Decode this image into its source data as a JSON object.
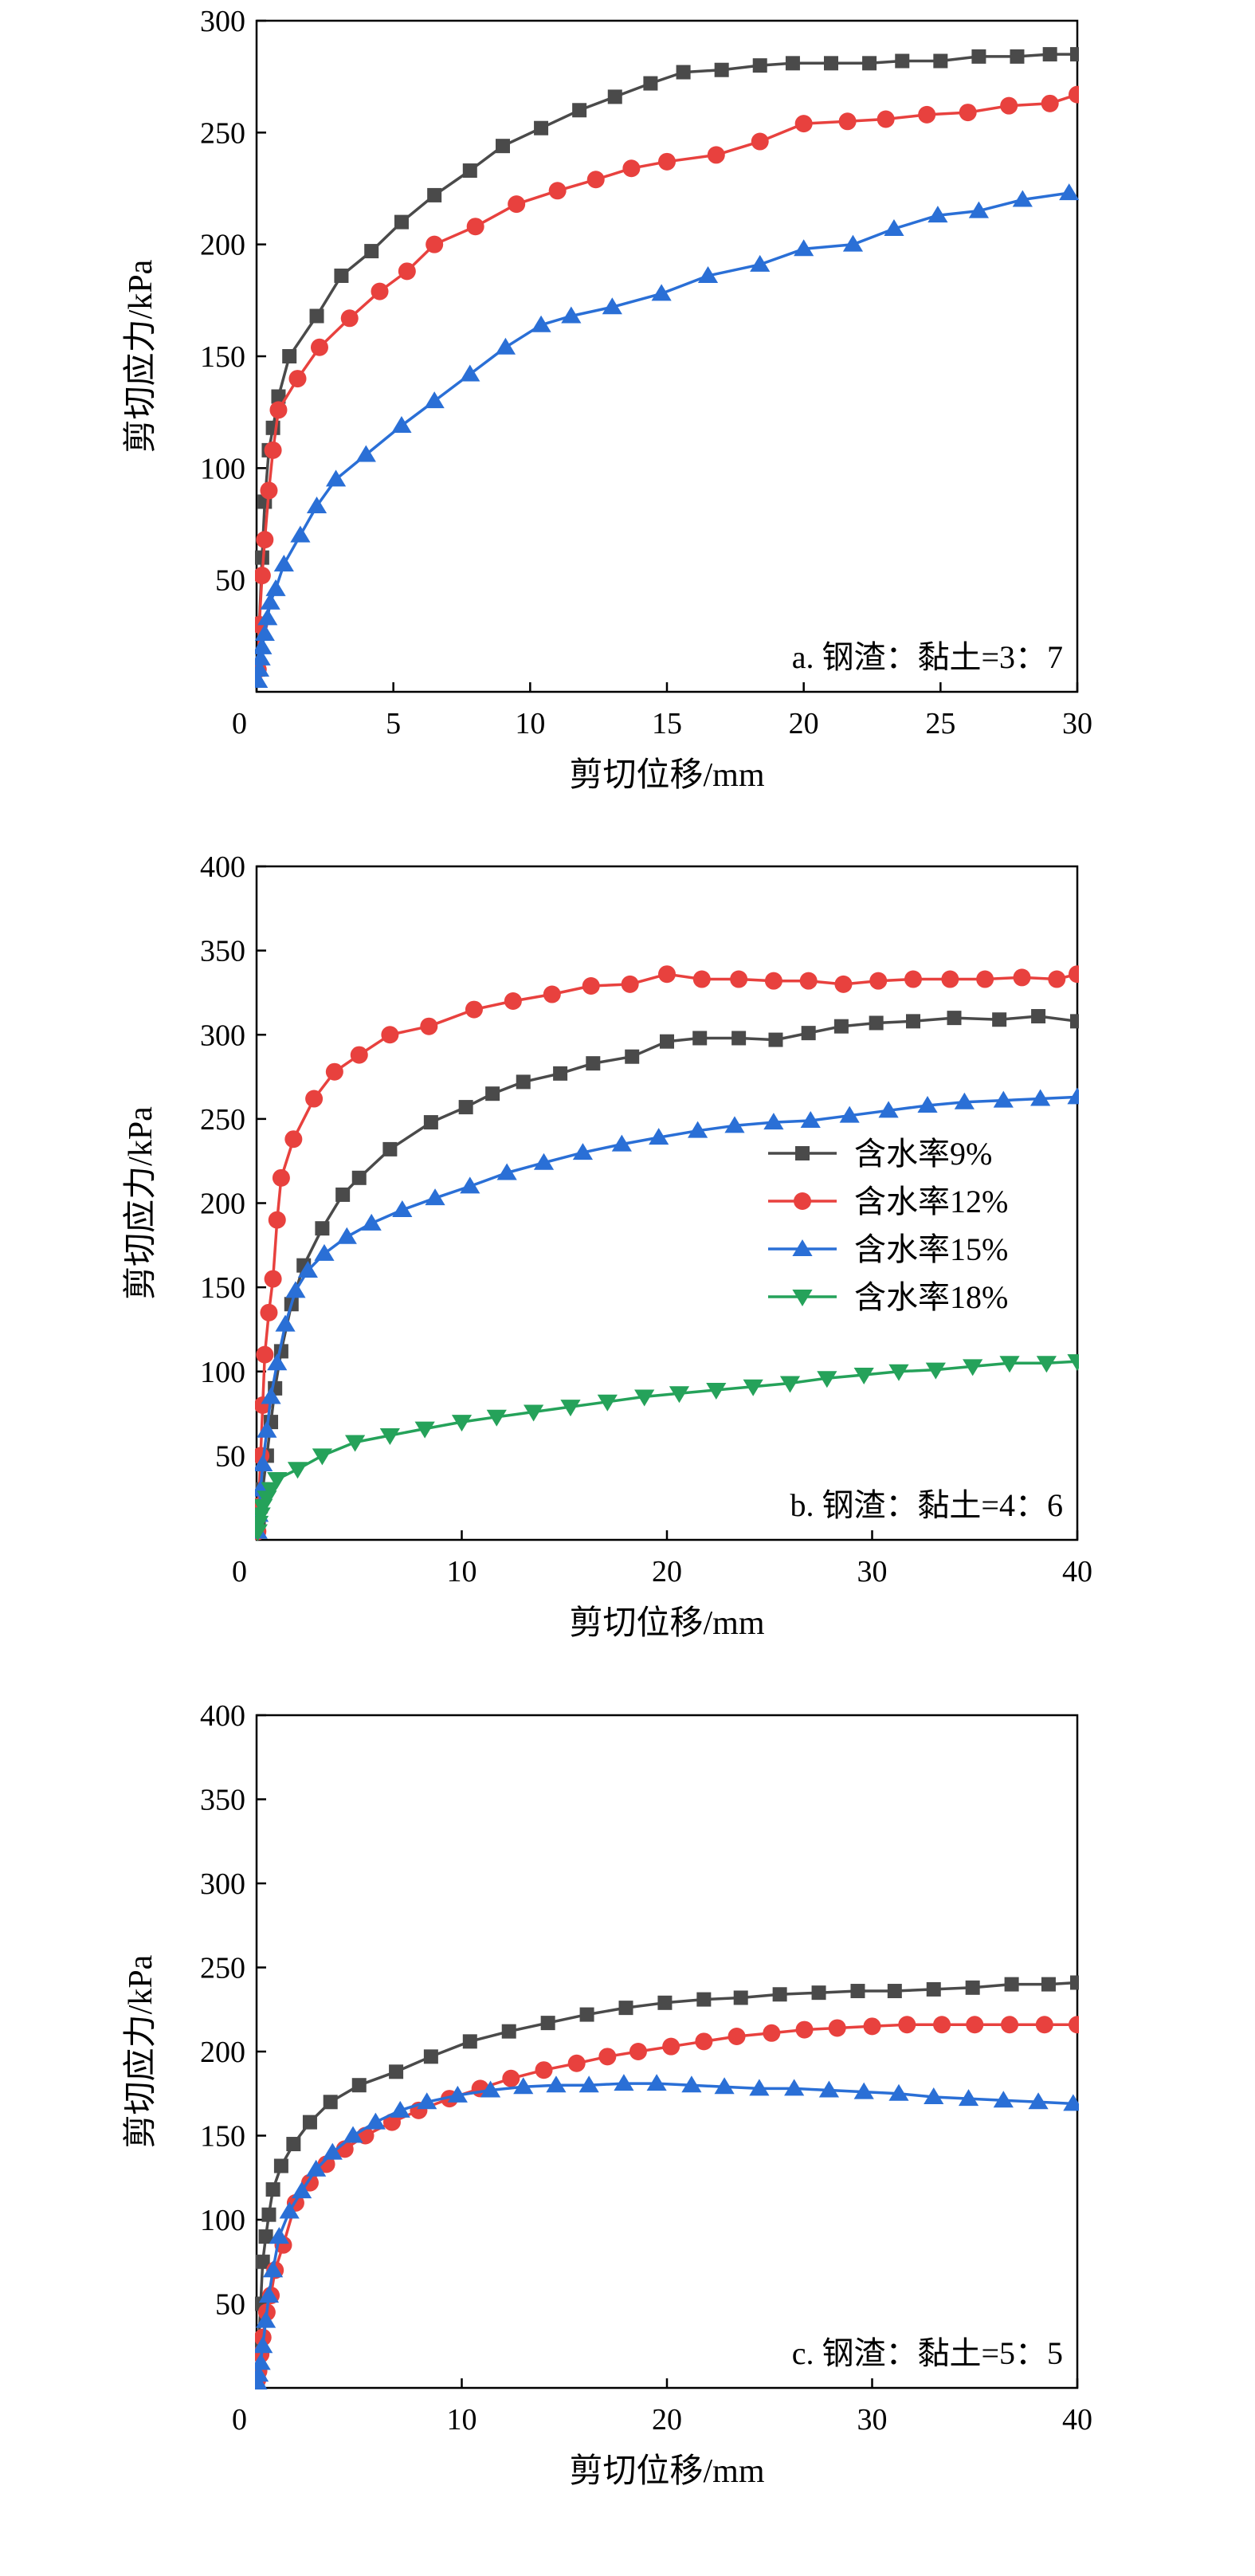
{
  "chart_data": [
    {
      "type": "line",
      "annotation": "a. 钢渣：黏土=3：7",
      "xlabel": "剪切位移/mm",
      "ylabel": "剪切应力/kPa",
      "xlim": [
        0,
        30
      ],
      "ylim": [
        0,
        300
      ],
      "x_ticks": [
        0,
        5,
        10,
        15,
        20,
        25,
        30
      ],
      "y_ticks": [
        50,
        100,
        150,
        200,
        250,
        300
      ],
      "legend": false,
      "series": [
        {
          "color": "#4a4a4a",
          "marker": "square",
          "x": [
            0.05,
            0.1,
            0.2,
            0.3,
            0.45,
            0.6,
            0.8,
            1.2,
            2.2,
            3.1,
            4.2,
            5.3,
            6.5,
            7.8,
            9.0,
            10.4,
            11.8,
            13.1,
            14.4,
            15.6,
            17.0,
            18.4,
            19.6,
            21.0,
            22.4,
            23.6,
            25.0,
            26.4,
            27.8,
            29.0,
            30.0
          ],
          "y": [
            10,
            30,
            60,
            85,
            108,
            118,
            132,
            150,
            168,
            186,
            197,
            210,
            222,
            233,
            244,
            252,
            260,
            266,
            272,
            277,
            278,
            280,
            281,
            281,
            281,
            282,
            282,
            284,
            284,
            285,
            285
          ]
        },
        {
          "color": "#e8413e",
          "marker": "circle",
          "x": [
            0.05,
            0.1,
            0.2,
            0.3,
            0.45,
            0.6,
            0.8,
            1.5,
            2.3,
            3.4,
            4.5,
            5.5,
            6.5,
            8.0,
            9.5,
            11.0,
            12.4,
            13.7,
            15.0,
            16.8,
            18.4,
            20.0,
            21.6,
            23.0,
            24.5,
            26.0,
            27.5,
            29.0,
            30.0
          ],
          "y": [
            10,
            30,
            52,
            68,
            90,
            108,
            126,
            140,
            154,
            167,
            179,
            188,
            200,
            208,
            218,
            224,
            229,
            234,
            237,
            240,
            246,
            254,
            255,
            256,
            258,
            259,
            262,
            263,
            267
          ]
        },
        {
          "color": "#2a6fd6",
          "marker": "triangle-up",
          "x": [
            0.05,
            0.1,
            0.15,
            0.2,
            0.3,
            0.4,
            0.5,
            0.7,
            1.0,
            1.6,
            2.2,
            2.9,
            4.0,
            5.3,
            6.5,
            7.8,
            9.1,
            10.4,
            11.5,
            13.0,
            14.8,
            16.5,
            18.4,
            20.0,
            21.8,
            23.3,
            24.9,
            26.4,
            28.0,
            29.7
          ],
          "y": [
            5,
            10,
            15,
            20,
            26,
            33,
            40,
            46,
            57,
            70,
            83,
            95,
            106,
            119,
            130,
            142,
            154,
            164,
            168,
            172,
            178,
            186,
            191,
            198,
            200,
            207,
            213,
            215,
            220,
            223
          ]
        }
      ]
    },
    {
      "type": "line",
      "annotation": "b. 钢渣：黏土=4：6",
      "xlabel": "剪切位移/mm",
      "ylabel": "剪切应力/kPa",
      "xlim": [
        0,
        40
      ],
      "ylim": [
        0,
        400
      ],
      "x_ticks": [
        0,
        10,
        20,
        30,
        40
      ],
      "y_ticks": [
        50,
        100,
        150,
        200,
        250,
        300,
        350,
        400
      ],
      "legend": true,
      "legend_position": "center-right",
      "series": [
        {
          "name": "含水率9%",
          "color": "#4a4a4a",
          "marker": "square",
          "x": [
            0.05,
            0.1,
            0.2,
            0.3,
            0.5,
            0.7,
            0.9,
            1.2,
            1.7,
            2.3,
            3.2,
            4.2,
            5.0,
            6.5,
            8.5,
            10.2,
            11.5,
            13.0,
            14.8,
            16.4,
            18.3,
            20.0,
            21.6,
            23.5,
            25.3,
            26.9,
            28.5,
            30.2,
            32.0,
            34.0,
            36.2,
            38.1,
            40.0
          ],
          "y": [
            5,
            12,
            20,
            30,
            50,
            70,
            90,
            112,
            140,
            163,
            185,
            205,
            215,
            232,
            248,
            257,
            265,
            272,
            277,
            283,
            287,
            296,
            298,
            298,
            297,
            301,
            305,
            307,
            308,
            310,
            309,
            311,
            308
          ]
        },
        {
          "name": "含水率12%",
          "color": "#e8413e",
          "marker": "circle",
          "x": [
            0.05,
            0.1,
            0.2,
            0.3,
            0.4,
            0.6,
            0.8,
            1.0,
            1.2,
            1.8,
            2.8,
            3.8,
            5.0,
            6.5,
            8.4,
            10.6,
            12.5,
            14.4,
            16.3,
            18.2,
            20.0,
            21.7,
            23.5,
            25.2,
            26.9,
            28.6,
            30.3,
            32.0,
            33.8,
            35.5,
            37.3,
            39.0,
            40.0
          ],
          "y": [
            5,
            20,
            50,
            80,
            110,
            135,
            155,
            190,
            215,
            238,
            262,
            278,
            288,
            300,
            305,
            315,
            320,
            324,
            329,
            330,
            336,
            333,
            333,
            332,
            332,
            330,
            332,
            333,
            333,
            333,
            334,
            333,
            336
          ]
        },
        {
          "name": "含水率15%",
          "color": "#2a6fd6",
          "marker": "triangle-up",
          "x": [
            0.05,
            0.1,
            0.2,
            0.3,
            0.5,
            0.7,
            1.0,
            1.4,
            1.9,
            2.5,
            3.3,
            4.4,
            5.6,
            7.1,
            8.7,
            10.4,
            12.2,
            14.0,
            15.9,
            17.8,
            19.6,
            21.5,
            23.3,
            25.2,
            27.0,
            28.9,
            30.8,
            32.7,
            34.5,
            36.4,
            38.2,
            40.0
          ],
          "y": [
            5,
            15,
            30,
            45,
            65,
            85,
            105,
            128,
            148,
            160,
            170,
            180,
            188,
            196,
            203,
            210,
            218,
            224,
            230,
            235,
            239,
            243,
            246,
            248,
            249,
            252,
            255,
            258,
            260,
            261,
            262,
            263
          ]
        },
        {
          "name": "含水率18%",
          "color": "#25a25a",
          "marker": "triangle-down",
          "x": [
            0.05,
            0.1,
            0.2,
            0.3,
            0.5,
            0.7,
            1.0,
            2.0,
            3.2,
            4.8,
            6.5,
            8.2,
            10.0,
            11.7,
            13.5,
            15.3,
            17.1,
            18.9,
            20.6,
            22.4,
            24.2,
            26.0,
            27.8,
            29.6,
            31.3,
            33.1,
            34.9,
            36.7,
            38.5,
            40.0
          ],
          "y": [
            5,
            10,
            15,
            20,
            25,
            30,
            36,
            42,
            50,
            58,
            62,
            66,
            70,
            73,
            76,
            79,
            82,
            85,
            87,
            89,
            91,
            93,
            96,
            98,
            100,
            101,
            103,
            105,
            105,
            106
          ]
        }
      ]
    },
    {
      "type": "line",
      "annotation": "c. 钢渣：黏土=5：5",
      "xlabel": "剪切位移/mm",
      "ylabel": "剪切应力/kPa",
      "xlim": [
        0,
        40
      ],
      "ylim": [
        0,
        400
      ],
      "x_ticks": [
        0,
        10,
        20,
        30,
        40
      ],
      "y_ticks": [
        50,
        100,
        150,
        200,
        250,
        300,
        350,
        400
      ],
      "legend": false,
      "series": [
        {
          "color": "#4a4a4a",
          "marker": "square",
          "x": [
            0.05,
            0.1,
            0.2,
            0.3,
            0.45,
            0.6,
            0.8,
            1.2,
            1.8,
            2.6,
            3.6,
            5.0,
            6.8,
            8.5,
            10.4,
            12.3,
            14.2,
            16.1,
            18.0,
            19.9,
            21.8,
            23.6,
            25.5,
            27.4,
            29.3,
            31.1,
            33.0,
            34.9,
            36.8,
            38.6,
            40.0
          ],
          "y": [
            5,
            25,
            50,
            75,
            90,
            103,
            118,
            132,
            145,
            158,
            170,
            180,
            188,
            197,
            206,
            212,
            217,
            222,
            226,
            229,
            231,
            232,
            234,
            235,
            236,
            236,
            237,
            238,
            240,
            240,
            241
          ]
        },
        {
          "color": "#e8413e",
          "marker": "circle",
          "x": [
            0.05,
            0.1,
            0.2,
            0.3,
            0.5,
            0.7,
            0.9,
            1.3,
            1.9,
            2.6,
            3.4,
            4.3,
            5.3,
            6.6,
            7.9,
            9.4,
            10.9,
            12.4,
            14.0,
            15.6,
            17.1,
            18.6,
            20.2,
            21.8,
            23.4,
            25.1,
            26.7,
            28.3,
            30.0,
            31.7,
            33.4,
            35.0,
            36.7,
            38.4,
            40.0
          ],
          "y": [
            5,
            10,
            20,
            30,
            45,
            55,
            70,
            85,
            110,
            122,
            133,
            142,
            150,
            158,
            165,
            172,
            178,
            184,
            189,
            193,
            197,
            200,
            203,
            206,
            209,
            211,
            213,
            214,
            215,
            216,
            216,
            216,
            216,
            216,
            216
          ]
        },
        {
          "color": "#2a6fd6",
          "marker": "triangle-up",
          "x": [
            0.05,
            0.1,
            0.2,
            0.3,
            0.45,
            0.6,
            0.8,
            1.1,
            1.6,
            2.2,
            2.9,
            3.7,
            4.7,
            5.8,
            7.0,
            8.3,
            9.8,
            11.4,
            13.0,
            14.6,
            16.2,
            17.9,
            19.5,
            21.2,
            22.8,
            24.5,
            26.2,
            27.9,
            29.6,
            31.3,
            33.0,
            34.7,
            36.4,
            38.1,
            39.8
          ],
          "y": [
            3,
            8,
            15,
            25,
            40,
            55,
            70,
            90,
            105,
            117,
            130,
            140,
            150,
            158,
            165,
            170,
            174,
            177,
            179,
            180,
            180,
            181,
            181,
            180,
            179,
            178,
            178,
            177,
            176,
            175,
            173,
            172,
            171,
            170,
            169
          ]
        }
      ]
    }
  ]
}
